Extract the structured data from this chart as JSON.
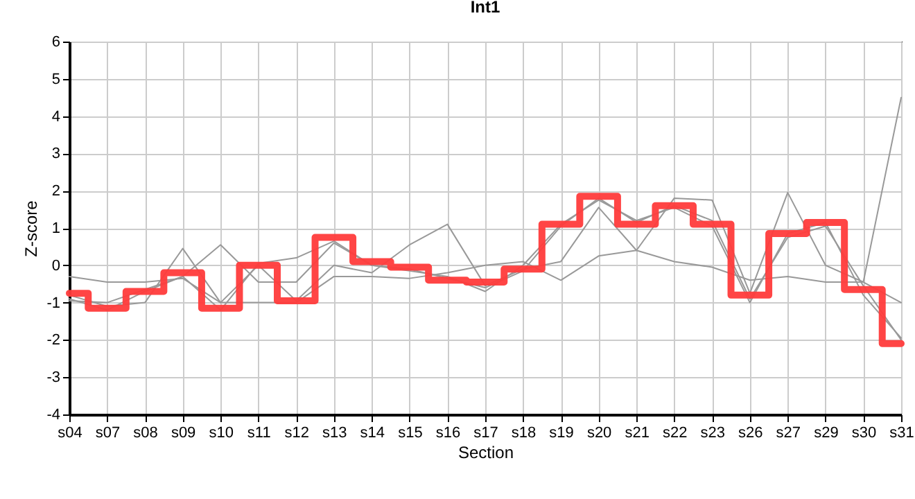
{
  "chart_data": {
    "type": "line",
    "title": "Int1",
    "xlabel": "Section",
    "ylabel": "Z-score",
    "categories": [
      "s04",
      "s07",
      "s08",
      "s09",
      "s10",
      "s11",
      "s12",
      "s13",
      "s14",
      "s15",
      "s16",
      "s17",
      "s18",
      "s19",
      "s20",
      "s21",
      "s22",
      "s23",
      "s26",
      "s27",
      "s29",
      "s30",
      "s31"
    ],
    "ylim": [
      -4,
      6
    ],
    "yticks": [
      -4,
      -3,
      -2,
      -1,
      0,
      1,
      2,
      3,
      4,
      5,
      6
    ],
    "grid": true,
    "marker": "none",
    "line_style": "solid",
    "series": [
      {
        "type": "line",
        "color": "#999999",
        "values": [
          -0.3,
          -0.45,
          -0.45,
          -0.35,
          -1.0,
          -1.0,
          -1.0,
          -0.3,
          -0.3,
          -0.35,
          -0.2,
          0.0,
          0.1,
          -0.4,
          0.25,
          0.4,
          0.1,
          -0.05,
          -0.4,
          -0.3,
          -0.45,
          -0.45,
          -1.0
        ]
      },
      {
        "type": "line",
        "color": "#999999",
        "values": [
          -0.8,
          -1.1,
          -1.0,
          0.45,
          -1.0,
          0.0,
          -0.95,
          0.0,
          -0.2,
          0.55,
          1.1,
          -0.55,
          -0.1,
          0.1,
          1.55,
          0.4,
          1.8,
          1.75,
          -0.75,
          1.95,
          0.0,
          -0.45,
          4.5
        ]
      },
      {
        "type": "line",
        "color": "#999999",
        "values": [
          -0.95,
          -1.0,
          -0.65,
          -0.3,
          0.55,
          -0.45,
          -0.45,
          0.6,
          0.0,
          -0.1,
          -0.35,
          -0.6,
          -0.15,
          1.05,
          1.8,
          1.15,
          1.6,
          1.2,
          -0.9,
          0.75,
          1.05,
          -0.55,
          -2.0
        ]
      },
      {
        "type": "line",
        "color": "#999999",
        "values": [
          -0.9,
          -1.2,
          -0.7,
          -0.3,
          -1.2,
          0.05,
          0.2,
          0.65,
          0.0,
          -0.15,
          -0.3,
          -0.7,
          0.0,
          1.1,
          1.75,
          1.2,
          1.55,
          1.05,
          -1.0,
          0.85,
          1.15,
          -0.8,
          -1.95
        ]
      },
      {
        "type": "step",
        "color": "#ff3b3b",
        "values": [
          -0.75,
          -1.15,
          -0.7,
          -0.2,
          -1.15,
          0.0,
          -0.95,
          0.75,
          0.1,
          -0.05,
          -0.4,
          -0.45,
          -0.1,
          1.1,
          1.85,
          1.1,
          1.6,
          1.1,
          -0.8,
          0.85,
          1.15,
          -0.65,
          -2.1
        ]
      }
    ]
  }
}
